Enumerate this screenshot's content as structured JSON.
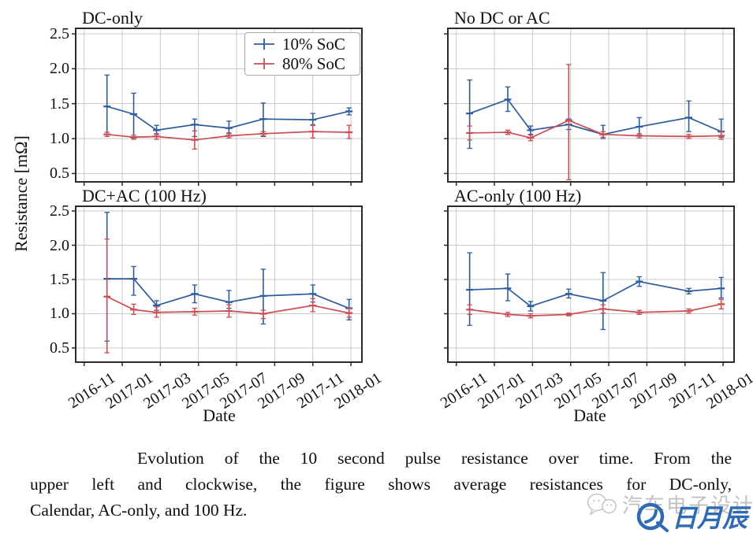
{
  "chart_data": {
    "type": "line",
    "ylabel": "Resistance [mΩ]",
    "xlabel": "Date",
    "ylim": [
      0.38,
      2.58
    ],
    "yticks": [
      0.5,
      1.0,
      1.5,
      2.0,
      2.5
    ],
    "grid": true,
    "legend_position": "upper-right-of-first-subplot",
    "xticks": [
      {
        "m": 0,
        "label": "2016-11"
      },
      {
        "m": 2,
        "label": "2017-01"
      },
      {
        "m": 4,
        "label": "2017-03"
      },
      {
        "m": 6,
        "label": "2017-05"
      },
      {
        "m": 8,
        "label": "2017-07"
      },
      {
        "m": 10,
        "label": "2017-09"
      },
      {
        "m": 12,
        "label": "2017-11"
      },
      {
        "m": 14,
        "label": "2018-01"
      }
    ],
    "colors": {
      "blue": "#2c5c9c",
      "red": "#cc4d55",
      "grid": "#c9c9c9",
      "spine": "#2b2b2b"
    },
    "legend": [
      {
        "label": "10% SoC",
        "color": "blue"
      },
      {
        "label": "80% SoC",
        "color": "red"
      }
    ],
    "subplots": [
      {
        "title": "DC-only",
        "series": [
          {
            "name": "10% SoC",
            "color": "blue",
            "x": [
              1.2,
              2.6,
              3.8,
              5.8,
              7.6,
              9.4,
              12.0,
              13.9
            ],
            "y": [
              1.46,
              1.35,
              1.12,
              1.2,
              1.15,
              1.28,
              1.27,
              1.39
            ],
            "err_lo": [
              1.03,
              1.01,
              1.06,
              1.03,
              1.08,
              1.03,
              1.19,
              1.34
            ],
            "err_hi": [
              1.91,
              1.65,
              1.19,
              1.28,
              1.25,
              1.51,
              1.36,
              1.44
            ]
          },
          {
            "name": "80% SoC",
            "color": "red",
            "x": [
              1.2,
              2.6,
              3.8,
              5.8,
              7.6,
              9.4,
              12.0,
              13.9
            ],
            "y": [
              1.06,
              1.02,
              1.03,
              0.98,
              1.04,
              1.07,
              1.1,
              1.09
            ],
            "err_lo": [
              1.03,
              0.99,
              0.99,
              0.85,
              1.01,
              1.04,
              1.01,
              1.0
            ],
            "err_hi": [
              1.09,
              1.05,
              1.07,
              1.11,
              1.07,
              1.1,
              1.2,
              1.19
            ]
          }
        ]
      },
      {
        "title": "No DC or AC",
        "series": [
          {
            "name": "10% SoC",
            "color": "blue",
            "x": [
              0.7,
              2.7,
              3.9,
              5.9,
              7.7,
              9.6,
              12.2,
              13.9
            ],
            "y": [
              1.36,
              1.56,
              1.12,
              1.2,
              1.06,
              1.17,
              1.3,
              1.1
            ],
            "err_lo": [
              0.86,
              1.39,
              1.06,
              1.13,
              1.0,
              1.05,
              1.1,
              1.02
            ],
            "err_hi": [
              1.84,
              1.74,
              1.18,
              1.28,
              1.19,
              1.3,
              1.54,
              1.28
            ]
          },
          {
            "name": "80% SoC",
            "color": "red",
            "x": [
              0.7,
              2.7,
              3.9,
              5.9,
              7.7,
              9.6,
              12.2,
              13.9
            ],
            "y": [
              1.08,
              1.09,
              1.01,
              1.26,
              1.06,
              1.04,
              1.03,
              1.04
            ],
            "err_lo": [
              0.98,
              1.06,
              0.97,
              0.41,
              1.02,
              1.01,
              1.0,
              0.99
            ],
            "err_hi": [
              1.18,
              1.12,
              1.05,
              2.06,
              1.1,
              1.07,
              1.06,
              1.1
            ]
          }
        ]
      },
      {
        "title": "DC+AC (100 Hz)",
        "series": [
          {
            "name": "10% SoC",
            "color": "blue",
            "x": [
              1.2,
              2.6,
              3.8,
              5.8,
              7.6,
              9.4,
              12.0,
              13.9
            ],
            "y": [
              1.51,
              1.51,
              1.12,
              1.29,
              1.17,
              1.26,
              1.29,
              1.08
            ],
            "err_lo": [
              0.6,
              1.27,
              1.05,
              1.16,
              1.08,
              0.85,
              1.17,
              0.91
            ],
            "err_hi": [
              2.48,
              1.69,
              1.19,
              1.42,
              1.34,
              1.65,
              1.42,
              1.21
            ]
          },
          {
            "name": "80% SoC",
            "color": "red",
            "x": [
              1.2,
              2.6,
              3.8,
              5.8,
              7.6,
              9.4,
              12.0,
              13.9
            ],
            "y": [
              1.25,
              1.06,
              1.02,
              1.03,
              1.04,
              1.0,
              1.12,
              1.01
            ],
            "err_lo": [
              0.43,
              0.99,
              0.95,
              0.98,
              0.95,
              0.93,
              1.03,
              0.95
            ],
            "err_hi": [
              2.09,
              1.14,
              1.1,
              1.08,
              1.13,
              1.05,
              1.22,
              1.08
            ]
          }
        ]
      },
      {
        "title": "AC-only (100 Hz)",
        "series": [
          {
            "name": "10% SoC",
            "color": "blue",
            "x": [
              0.7,
              2.7,
              3.9,
              5.9,
              7.7,
              9.6,
              12.2,
              13.9
            ],
            "y": [
              1.35,
              1.37,
              1.11,
              1.29,
              1.19,
              1.47,
              1.33,
              1.37
            ],
            "err_lo": [
              0.83,
              1.19,
              1.04,
              1.23,
              0.77,
              1.4,
              1.29,
              1.23
            ],
            "err_hi": [
              1.89,
              1.58,
              1.18,
              1.36,
              1.6,
              1.54,
              1.37,
              1.53
            ]
          },
          {
            "name": "80% SoC",
            "color": "red",
            "x": [
              0.7,
              2.7,
              3.9,
              5.9,
              7.7,
              9.6,
              12.2,
              13.9
            ],
            "y": [
              1.06,
              0.99,
              0.97,
              0.99,
              1.07,
              1.02,
              1.04,
              1.14
            ],
            "err_lo": [
              0.99,
              0.96,
              0.94,
              0.97,
              1.01,
              0.99,
              1.01,
              1.07
            ],
            "err_hi": [
              1.13,
              1.02,
              1.0,
              1.01,
              1.13,
              1.05,
              1.07,
              1.21
            ]
          }
        ]
      }
    ]
  },
  "caption": {
    "lines": [
      "Evolution of the 10 second pulse resistance over time. From the",
      "upper left and clockwise, the figure shows average resistances for DC-only,",
      "Calendar, AC-only, and 100 Hz."
    ]
  },
  "watermark": {
    "gray_text": "汽车电子设计",
    "blue_text": "日月辰"
  }
}
